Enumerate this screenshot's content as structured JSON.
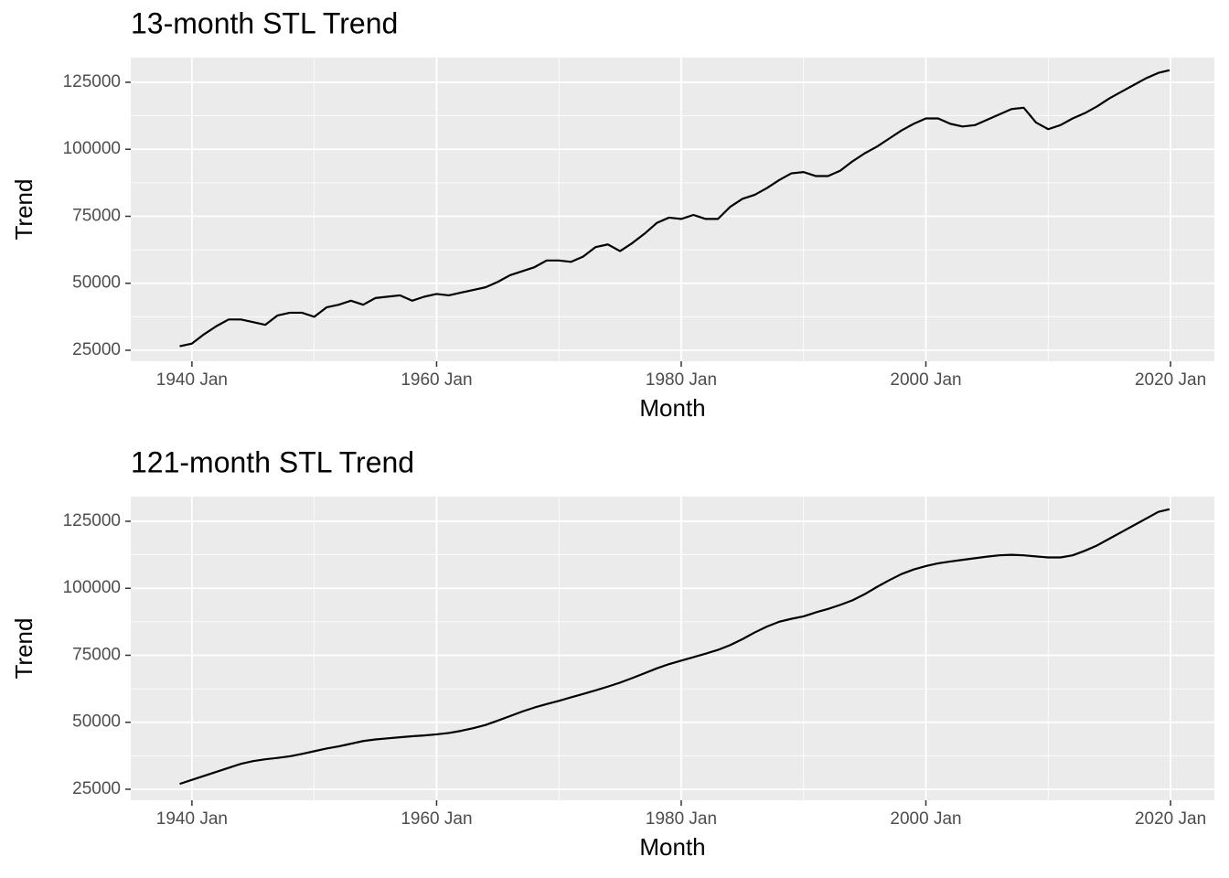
{
  "chart_data": [
    {
      "type": "line",
      "title": "13-month STL Trend",
      "x_label": "Month",
      "y_label": "Trend",
      "color": "#000000",
      "grid": true,
      "x": [
        "1939 Jan",
        "1940 Jan",
        "1941 Jan",
        "1942 Jan",
        "1943 Jan",
        "1944 Jan",
        "1945 Jan",
        "1946 Jan",
        "1947 Jan",
        "1948 Jan",
        "1949 Jan",
        "1950 Jan",
        "1951 Jan",
        "1952 Jan",
        "1953 Jan",
        "1954 Jan",
        "1955 Jan",
        "1956 Jan",
        "1957 Jan",
        "1958 Jan",
        "1959 Jan",
        "1960 Jan",
        "1961 Jan",
        "1962 Jan",
        "1963 Jan",
        "1964 Jan",
        "1965 Jan",
        "1966 Jan",
        "1967 Jan",
        "1968 Jan",
        "1969 Jan",
        "1970 Jan",
        "1971 Jan",
        "1972 Jan",
        "1973 Jan",
        "1974 Jan",
        "1975 Jan",
        "1976 Jan",
        "1977 Jan",
        "1978 Jan",
        "1979 Jan",
        "1980 Jan",
        "1981 Jan",
        "1982 Jan",
        "1983 Jan",
        "1984 Jan",
        "1985 Jan",
        "1986 Jan",
        "1987 Jan",
        "1988 Jan",
        "1989 Jan",
        "1990 Jan",
        "1991 Jan",
        "1992 Jan",
        "1993 Jan",
        "1994 Jan",
        "1995 Jan",
        "1996 Jan",
        "1997 Jan",
        "1998 Jan",
        "1999 Jan",
        "2000 Jan",
        "2001 Jan",
        "2002 Jan",
        "2003 Jan",
        "2004 Jan",
        "2005 Jan",
        "2006 Jan",
        "2007 Jan",
        "2008 Jan",
        "2009 Jan",
        "2010 Jan",
        "2011 Jan",
        "2012 Jan",
        "2013 Jan",
        "2014 Jan",
        "2015 Jan",
        "2016 Jan",
        "2017 Jan",
        "2018 Jan",
        "2019 Jan",
        "2019 Dec"
      ],
      "values": [
        26500,
        27500,
        31000,
        34000,
        36500,
        36500,
        35500,
        34500,
        38000,
        39000,
        39000,
        37500,
        41000,
        42000,
        43500,
        42000,
        44500,
        45000,
        45500,
        43500,
        45000,
        46000,
        45500,
        46500,
        47500,
        48500,
        50500,
        53000,
        54500,
        56000,
        58500,
        58500,
        58000,
        60000,
        63500,
        64500,
        62000,
        65000,
        68500,
        72500,
        74500,
        74000,
        75500,
        74000,
        74000,
        78500,
        81500,
        83000,
        85500,
        88500,
        91000,
        91500,
        90000,
        90000,
        92000,
        95500,
        98500,
        101000,
        104000,
        107000,
        109500,
        111500,
        111500,
        109500,
        108500,
        109000,
        111000,
        113000,
        115000,
        115500,
        110000,
        107500,
        109000,
        111500,
        113500,
        116000,
        119000,
        121500,
        124000,
        126500,
        128500,
        129500
      ],
      "xlim": [
        "1935 Jan",
        "2023 Aug"
      ],
      "xticks": [
        "1940 Jan",
        "1960 Jan",
        "1980 Jan",
        "2000 Jan",
        "2020 Jan"
      ],
      "ylim": [
        20900,
        134200
      ],
      "yticks": [
        25000,
        50000,
        75000,
        100000,
        125000
      ]
    },
    {
      "type": "line",
      "title": "121-month STL Trend",
      "x_label": "Month",
      "y_label": "Trend",
      "color": "#000000",
      "grid": true,
      "x": [
        "1939 Jan",
        "1940 Jan",
        "1941 Jan",
        "1942 Jan",
        "1943 Jan",
        "1944 Jan",
        "1945 Jan",
        "1946 Jan",
        "1947 Jan",
        "1948 Jan",
        "1949 Jan",
        "1950 Jan",
        "1951 Jan",
        "1952 Jan",
        "1953 Jan",
        "1954 Jan",
        "1955 Jan",
        "1956 Jan",
        "1957 Jan",
        "1958 Jan",
        "1959 Jan",
        "1960 Jan",
        "1961 Jan",
        "1962 Jan",
        "1963 Jan",
        "1964 Jan",
        "1965 Jan",
        "1966 Jan",
        "1967 Jan",
        "1968 Jan",
        "1969 Jan",
        "1970 Jan",
        "1971 Jan",
        "1972 Jan",
        "1973 Jan",
        "1974 Jan",
        "1975 Jan",
        "1976 Jan",
        "1977 Jan",
        "1978 Jan",
        "1979 Jan",
        "1980 Jan",
        "1981 Jan",
        "1982 Jan",
        "1983 Jan",
        "1984 Jan",
        "1985 Jan",
        "1986 Jan",
        "1987 Jan",
        "1988 Jan",
        "1989 Jan",
        "1990 Jan",
        "1991 Jan",
        "1992 Jan",
        "1993 Jan",
        "1994 Jan",
        "1995 Jan",
        "1996 Jan",
        "1997 Jan",
        "1998 Jan",
        "1999 Jan",
        "2000 Jan",
        "2001 Jan",
        "2002 Jan",
        "2003 Jan",
        "2004 Jan",
        "2005 Jan",
        "2006 Jan",
        "2007 Jan",
        "2008 Jan",
        "2009 Jan",
        "2010 Jan",
        "2011 Jan",
        "2012 Jan",
        "2013 Jan",
        "2014 Jan",
        "2015 Jan",
        "2016 Jan",
        "2017 Jan",
        "2018 Jan",
        "2019 Jan",
        "2019 Dec"
      ],
      "values": [
        27000,
        28500,
        30000,
        31500,
        33000,
        34500,
        35500,
        36200,
        36700,
        37300,
        38200,
        39200,
        40200,
        41000,
        42000,
        43000,
        43600,
        44000,
        44400,
        44800,
        45100,
        45500,
        46000,
        46800,
        47800,
        49000,
        50600,
        52300,
        54000,
        55500,
        56800,
        58000,
        59300,
        60600,
        61900,
        63300,
        64800,
        66500,
        68300,
        70100,
        71700,
        73000,
        74300,
        75600,
        77000,
        78800,
        81000,
        83500,
        85700,
        87500,
        88600,
        89500,
        91000,
        92300,
        93800,
        95500,
        97800,
        100500,
        103000,
        105300,
        107000,
        108300,
        109300,
        110000,
        110600,
        111200,
        111800,
        112300,
        112500,
        112300,
        111900,
        111500,
        111500,
        112300,
        114000,
        116000,
        118500,
        121000,
        123500,
        126000,
        128500,
        129500
      ],
      "xlim": [
        "1935 Jan",
        "2023 Aug"
      ],
      "xticks": [
        "1940 Jan",
        "1960 Jan",
        "1980 Jan",
        "2000 Jan",
        "2020 Jan"
      ],
      "ylim": [
        20900,
        134200
      ],
      "yticks": [
        25000,
        50000,
        75000,
        100000,
        125000
      ]
    }
  ]
}
